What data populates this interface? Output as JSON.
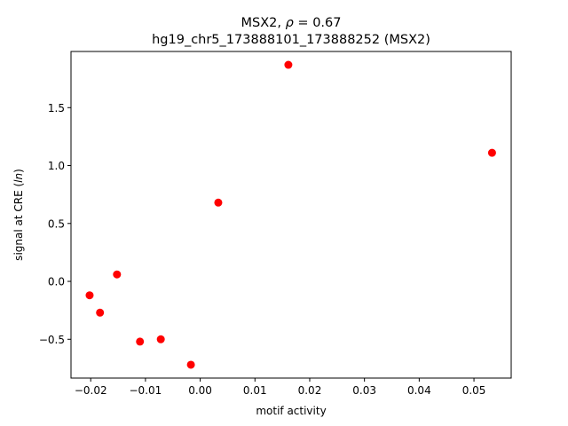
{
  "chart_data": {
    "type": "scatter",
    "title_line1_prefix": "MSX2, ",
    "title_line1_rho": "ρ",
    "title_line1_suffix": " = 0.67",
    "title_line2": "hg19_chr5_173888101_173888252 (MSX2)",
    "xlabel": "motif activity",
    "ylabel_prefix": "signal at CRE (",
    "ylabel_italic": "ln",
    "ylabel_suffix": ")",
    "xlim": [
      -0.0236,
      0.0568
    ],
    "ylim": [
      -0.835,
      1.985
    ],
    "x_ticks": [
      {
        "value": -0.02,
        "label": "−0.02"
      },
      {
        "value": -0.01,
        "label": "−0.01"
      },
      {
        "value": 0.0,
        "label": "0.00"
      },
      {
        "value": 0.01,
        "label": "0.01"
      },
      {
        "value": 0.02,
        "label": "0.02"
      },
      {
        "value": 0.03,
        "label": "0.03"
      },
      {
        "value": 0.04,
        "label": "0.04"
      },
      {
        "value": 0.05,
        "label": "0.05"
      }
    ],
    "y_ticks": [
      {
        "value": -0.5,
        "label": "−0.5"
      },
      {
        "value": 0.0,
        "label": "0.0"
      },
      {
        "value": 0.5,
        "label": "0.5"
      },
      {
        "value": 1.0,
        "label": "1.0"
      },
      {
        "value": 1.5,
        "label": "1.5"
      }
    ],
    "grid": false,
    "marker_color": "#ff0000",
    "points": [
      {
        "x": -0.0202,
        "y": -0.12
      },
      {
        "x": -0.0183,
        "y": -0.27
      },
      {
        "x": -0.0152,
        "y": 0.06
      },
      {
        "x": -0.011,
        "y": -0.52
      },
      {
        "x": -0.0072,
        "y": -0.5
      },
      {
        "x": -0.0017,
        "y": -0.72
      },
      {
        "x": 0.0033,
        "y": 0.68
      },
      {
        "x": 0.0161,
        "y": 1.87
      },
      {
        "x": 0.0533,
        "y": 1.11
      }
    ]
  }
}
